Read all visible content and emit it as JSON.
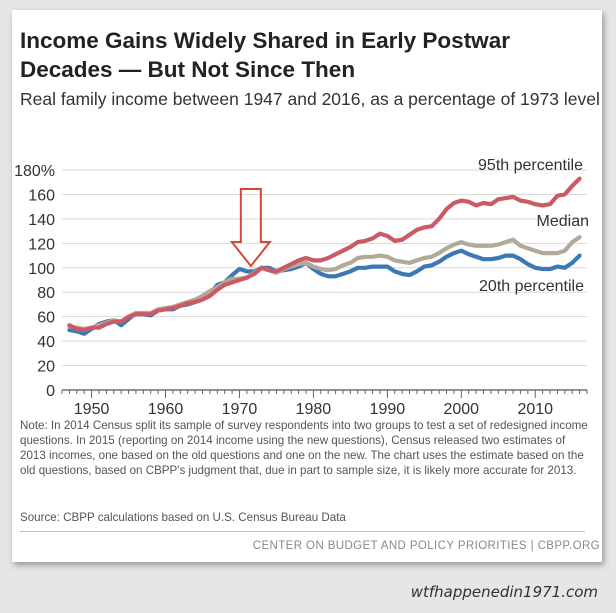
{
  "title": "Income Gains Widely Shared in Early Postwar Decades — But Not Since Then",
  "subtitle": "Real family income between 1947 and 2016, as a percentage of 1973 level",
  "note": "Note: In 2014 Census split its sample of survey respondents into two groups to test a set of redesigned income questions. In 2015 (reporting on 2014 income using the new questions), Census released two estimates of 2013 incomes, one based on the old questions and one on the new. The chart uses the estimate based on the old questions, based on CBPP's judgment that, due in part to sample size, it is likely more accurate for 2013.",
  "source": "Source: CBPP calculations based on U.S. Census Bureau Data",
  "footer": "CENTER ON BUDGET AND POLICY PRIORITIES | CBPP.ORG",
  "watermark": "wtfhappenedin1971.com",
  "chart_data": {
    "type": "line",
    "title": "Income Gains Widely Shared in Early Postwar Decades — But Not Since Then",
    "xlabel": "",
    "ylabel": "",
    "xlim": [
      1946,
      2017
    ],
    "ylim": [
      0,
      180
    ],
    "x_ticks": [
      1950,
      1960,
      1970,
      1980,
      1990,
      2000,
      2010
    ],
    "x_tick_labels": [
      "1950",
      "1960",
      "1970",
      "1980",
      "1990",
      "2000",
      "2010"
    ],
    "y_ticks": [
      0,
      20,
      40,
      60,
      80,
      100,
      120,
      140,
      160,
      180
    ],
    "y_tick_labels": [
      "0",
      "20",
      "40",
      "60",
      "80",
      "100",
      "120",
      "140",
      "160",
      "180%"
    ],
    "annotation": {
      "type": "arrow-down",
      "year": 1971,
      "color": "#d4483c"
    },
    "series": [
      {
        "name": "20th percentile",
        "color": "#3c79b4",
        "x": [
          1947,
          1948,
          1949,
          1950,
          1951,
          1952,
          1953,
          1954,
          1955,
          1956,
          1957,
          1958,
          1959,
          1960,
          1961,
          1962,
          1963,
          1964,
          1965,
          1966,
          1967,
          1968,
          1969,
          1970,
          1971,
          1972,
          1973,
          1974,
          1975,
          1976,
          1977,
          1978,
          1979,
          1980,
          1981,
          1982,
          1983,
          1984,
          1985,
          1986,
          1987,
          1988,
          1989,
          1990,
          1991,
          1992,
          1993,
          1994,
          1995,
          1996,
          1997,
          1998,
          1999,
          2000,
          2001,
          2002,
          2003,
          2004,
          2005,
          2006,
          2007,
          2008,
          2009,
          2010,
          2011,
          2012,
          2013,
          2014,
          2015,
          2016
        ],
        "values": [
          49,
          48,
          46,
          50,
          54,
          56,
          57,
          53,
          58,
          63,
          62,
          61,
          65,
          66,
          66,
          69,
          70,
          72,
          75,
          79,
          86,
          88,
          94,
          99,
          97,
          97,
          100,
          100,
          97,
          98,
          99,
          101,
          104,
          99,
          95,
          93,
          93,
          95,
          97,
          100,
          100,
          101,
          101,
          101,
          97,
          95,
          94,
          97,
          101,
          102,
          105,
          109,
          112,
          114,
          111,
          109,
          107,
          107,
          108,
          110,
          110,
          107,
          103,
          100,
          99,
          99,
          101,
          100,
          104,
          110
        ]
      },
      {
        "name": "Median",
        "color": "#b2aa98",
        "x": [
          1947,
          1948,
          1949,
          1950,
          1951,
          1952,
          1953,
          1954,
          1955,
          1956,
          1957,
          1958,
          1959,
          1960,
          1961,
          1962,
          1963,
          1964,
          1965,
          1966,
          1967,
          1968,
          1969,
          1970,
          1971,
          1972,
          1973,
          1974,
          1975,
          1976,
          1977,
          1978,
          1979,
          1980,
          1981,
          1982,
          1983,
          1984,
          1985,
          1986,
          1987,
          1988,
          1989,
          1990,
          1991,
          1992,
          1993,
          1994,
          1995,
          1996,
          1997,
          1998,
          1999,
          2000,
          2001,
          2002,
          2003,
          2004,
          2005,
          2006,
          2007,
          2008,
          2009,
          2010,
          2011,
          2012,
          2013,
          2014,
          2015,
          2016
        ],
        "values": [
          52,
          51,
          50,
          51,
          53,
          55,
          57,
          56,
          60,
          63,
          63,
          63,
          66,
          67,
          68,
          70,
          72,
          74,
          77,
          81,
          84,
          88,
          91,
          91,
          92,
          96,
          100,
          98,
          96,
          99,
          101,
          103,
          104,
          101,
          99,
          98,
          99,
          102,
          104,
          108,
          109,
          109,
          110,
          109,
          106,
          105,
          104,
          106,
          108,
          109,
          112,
          116,
          119,
          121,
          119,
          118,
          118,
          118,
          119,
          121,
          123,
          118,
          116,
          114,
          112,
          112,
          112,
          114,
          121,
          125
        ]
      },
      {
        "name": "95th percentile",
        "color": "#cb5a64",
        "x": [
          1947,
          1948,
          1949,
          1950,
          1951,
          1952,
          1953,
          1954,
          1955,
          1956,
          1957,
          1958,
          1959,
          1960,
          1961,
          1962,
          1963,
          1964,
          1965,
          1966,
          1967,
          1968,
          1969,
          1970,
          1971,
          1972,
          1973,
          1974,
          1975,
          1976,
          1977,
          1978,
          1979,
          1980,
          1981,
          1982,
          1983,
          1984,
          1985,
          1986,
          1987,
          1988,
          1989,
          1990,
          1991,
          1992,
          1993,
          1994,
          1995,
          1996,
          1997,
          1998,
          1999,
          2000,
          2001,
          2002,
          2003,
          2004,
          2005,
          2006,
          2007,
          2008,
          2009,
          2010,
          2011,
          2012,
          2013,
          2014,
          2015,
          2016
        ],
        "values": [
          53,
          50,
          49,
          51,
          51,
          54,
          56,
          56,
          60,
          62,
          62,
          62,
          65,
          66,
          67,
          69,
          71,
          72,
          74,
          77,
          82,
          86,
          88,
          90,
          92,
          95,
          100,
          98,
          97,
          100,
          103,
          106,
          108,
          106,
          106,
          108,
          111,
          114,
          117,
          121,
          122,
          124,
          128,
          126,
          122,
          123,
          127,
          131,
          133,
          134,
          140,
          148,
          153,
          155,
          154,
          151,
          153,
          152,
          156,
          157,
          158,
          155,
          154,
          152,
          151,
          152,
          159,
          160,
          167,
          173
        ]
      }
    ]
  }
}
